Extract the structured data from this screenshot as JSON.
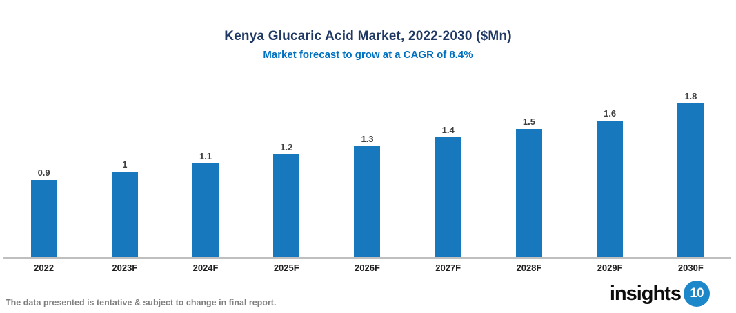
{
  "header": {
    "title": "Kenya Glucaric Acid Market, 2022-2030 ($Mn)",
    "subtitle": "Market forecast to grow at a CAGR of 8.4%"
  },
  "footer": {
    "disclaimer": "The data presented is tentative & subject to change in final report.",
    "logo_text": "insights",
    "logo_badge": "10"
  },
  "colors": {
    "bar": "#1878BE",
    "title": "#1F3864",
    "subtitle": "#0070C0",
    "value_label": "#404040",
    "tick_label": "#1F1F1F",
    "axis_line": "#BFBFBF",
    "disclaimer": "#7F7F7F",
    "logo_text": "#0D0D0D",
    "logo_badge": "#1C87C9"
  },
  "chart_data": {
    "type": "bar",
    "categories": [
      "2022",
      "2023F",
      "2024F",
      "2025F",
      "2026F",
      "2027F",
      "2028F",
      "2029F",
      "2030F"
    ],
    "values": [
      0.9,
      1,
      1.1,
      1.2,
      1.3,
      1.4,
      1.5,
      1.6,
      1.8
    ],
    "value_labels": [
      "0.9",
      "1",
      "1.1",
      "1.2",
      "1.3",
      "1.4",
      "1.5",
      "1.6",
      "1.8"
    ],
    "title": "Kenya Glucaric Acid Market, 2022-2030 ($Mn)",
    "subtitle": "Market forecast to grow at a CAGR of 8.4%",
    "xlabel": "",
    "ylabel": "",
    "ylim": [
      0,
      2
    ],
    "grid": false,
    "legend": false,
    "bar_color": "#1878BE"
  }
}
